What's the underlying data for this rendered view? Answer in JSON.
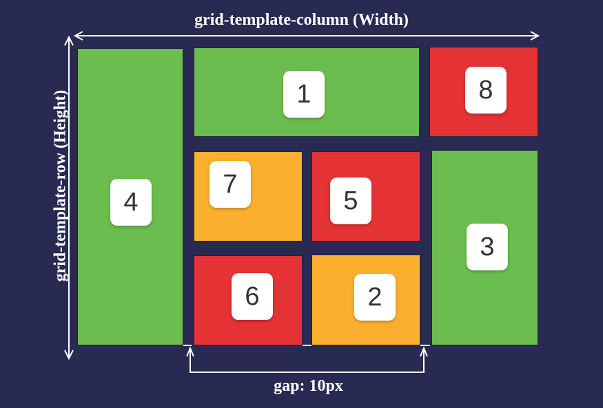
{
  "labels": {
    "width": "grid-template-column (Width)",
    "height": "grid-template-row (Height)",
    "gap": "gap: 10px"
  },
  "colors": {
    "background": "#282a52",
    "green": "#6cbd4f",
    "red": "#e53234",
    "orange": "#fbaf2f",
    "line": "#ffffff"
  },
  "cells": [
    {
      "number": "1",
      "color": "green"
    },
    {
      "number": "2",
      "color": "orange"
    },
    {
      "number": "3",
      "color": "green"
    },
    {
      "number": "4",
      "color": "green"
    },
    {
      "number": "5",
      "color": "red"
    },
    {
      "number": "6",
      "color": "red"
    },
    {
      "number": "7",
      "color": "orange"
    },
    {
      "number": "8",
      "color": "red"
    }
  ]
}
